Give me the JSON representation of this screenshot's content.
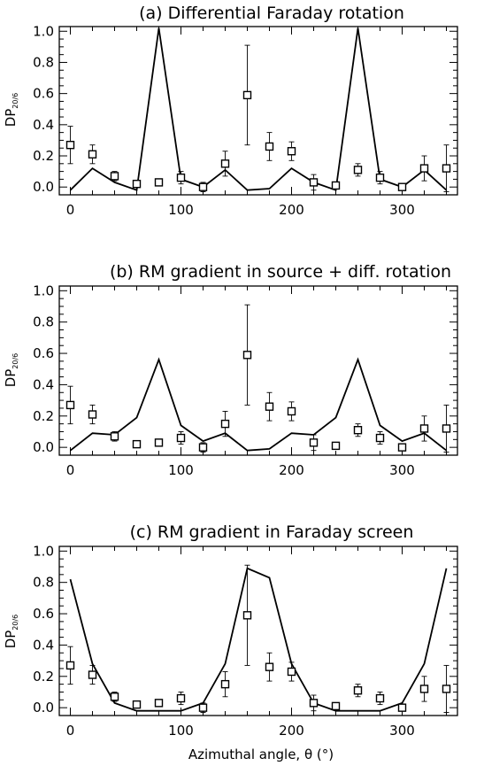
{
  "figure": {
    "xlabel": "Azimuthal angle, θ (°)",
    "ylabel_main": "DP",
    "ylabel_sub": "20/6"
  },
  "chart_data": [
    {
      "type": "line",
      "title": "(a) Differential Faraday rotation",
      "xlabel": "",
      "ylabel": "DP20/6",
      "xlim": [
        -10,
        350
      ],
      "ylim": [
        -0.05,
        1.03
      ],
      "xticks": [
        0,
        100,
        200,
        300
      ],
      "yticks": [
        0.0,
        0.2,
        0.4,
        0.6,
        0.8,
        1.0
      ],
      "grid": false,
      "model": {
        "x": [
          0,
          20,
          40,
          60,
          80,
          100,
          120,
          140,
          160,
          180,
          200,
          220,
          240,
          260,
          280,
          300,
          320,
          340
        ],
        "y": [
          -0.02,
          0.12,
          0.03,
          -0.02,
          1.02,
          0.05,
          0.0,
          0.11,
          -0.02,
          -0.01,
          0.12,
          0.03,
          -0.02,
          1.02,
          0.05,
          0.0,
          0.11,
          -0.02
        ]
      },
      "observed": {
        "x": [
          0,
          20,
          40,
          60,
          80,
          100,
          120,
          140,
          160,
          180,
          200,
          220,
          240,
          260,
          280,
          300,
          320,
          340
        ],
        "y": [
          0.27,
          0.21,
          0.07,
          0.02,
          0.03,
          0.06,
          0.0,
          0.15,
          0.59,
          0.26,
          0.23,
          0.03,
          0.01,
          0.11,
          0.06,
          0.0,
          0.12,
          0.12
        ],
        "err": [
          0.12,
          0.06,
          0.03,
          0.02,
          0.02,
          0.04,
          0.03,
          0.08,
          0.32,
          0.09,
          0.06,
          0.05,
          0.02,
          0.04,
          0.04,
          0.02,
          0.08,
          0.15
        ]
      }
    },
    {
      "type": "line",
      "title": "(b) RM gradient in source + diff. rotation",
      "xlabel": "",
      "ylabel": "DP20/6",
      "xlim": [
        -10,
        350
      ],
      "ylim": [
        -0.05,
        1.03
      ],
      "xticks": [
        0,
        100,
        200,
        300
      ],
      "yticks": [
        0.0,
        0.2,
        0.4,
        0.6,
        0.8,
        1.0
      ],
      "grid": false,
      "model": {
        "x": [
          0,
          20,
          40,
          60,
          80,
          100,
          120,
          140,
          160,
          180,
          200,
          220,
          240,
          260,
          280,
          300,
          320,
          340
        ],
        "y": [
          -0.02,
          0.09,
          0.08,
          0.19,
          0.56,
          0.14,
          0.04,
          0.09,
          -0.02,
          -0.01,
          0.09,
          0.08,
          0.19,
          0.56,
          0.14,
          0.04,
          0.09,
          -0.02
        ]
      },
      "observed": {
        "x": [
          0,
          20,
          40,
          60,
          80,
          100,
          120,
          140,
          160,
          180,
          200,
          220,
          240,
          260,
          280,
          300,
          320,
          340
        ],
        "y": [
          0.27,
          0.21,
          0.07,
          0.02,
          0.03,
          0.06,
          0.0,
          0.15,
          0.59,
          0.26,
          0.23,
          0.03,
          0.01,
          0.11,
          0.06,
          0.0,
          0.12,
          0.12
        ],
        "err": [
          0.12,
          0.06,
          0.03,
          0.02,
          0.02,
          0.04,
          0.03,
          0.08,
          0.32,
          0.09,
          0.06,
          0.05,
          0.02,
          0.04,
          0.04,
          0.02,
          0.08,
          0.15
        ]
      }
    },
    {
      "type": "line",
      "title": "(c) RM gradient in Faraday screen",
      "xlabel": "Azimuthal angle, θ (°)",
      "ylabel": "DP20/6",
      "xlim": [
        -10,
        350
      ],
      "ylim": [
        -0.05,
        1.03
      ],
      "xticks": [
        0,
        100,
        200,
        300
      ],
      "yticks": [
        0.0,
        0.2,
        0.4,
        0.6,
        0.8,
        1.0
      ],
      "grid": false,
      "model": {
        "x": [
          0,
          20,
          40,
          60,
          80,
          100,
          120,
          140,
          160,
          180,
          200,
          220,
          240,
          260,
          280,
          300,
          320,
          340
        ],
        "y": [
          0.82,
          0.28,
          0.03,
          -0.02,
          -0.02,
          -0.02,
          0.03,
          0.28,
          0.89,
          0.83,
          0.28,
          0.03,
          -0.02,
          -0.02,
          -0.02,
          0.03,
          0.28,
          0.89
        ]
      },
      "observed": {
        "x": [
          0,
          20,
          40,
          60,
          80,
          100,
          120,
          140,
          160,
          180,
          200,
          220,
          240,
          260,
          280,
          300,
          320,
          340
        ],
        "y": [
          0.27,
          0.21,
          0.07,
          0.02,
          0.03,
          0.06,
          0.0,
          0.15,
          0.59,
          0.26,
          0.23,
          0.03,
          0.01,
          0.11,
          0.06,
          0.0,
          0.12,
          0.12
        ],
        "err": [
          0.12,
          0.06,
          0.03,
          0.02,
          0.02,
          0.04,
          0.03,
          0.08,
          0.32,
          0.09,
          0.06,
          0.05,
          0.02,
          0.04,
          0.04,
          0.02,
          0.08,
          0.15
        ]
      }
    }
  ]
}
